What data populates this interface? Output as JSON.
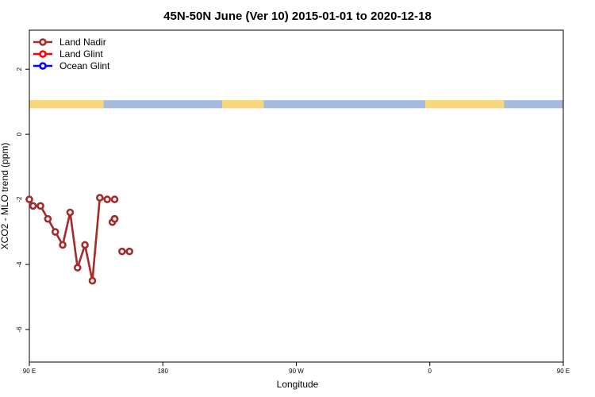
{
  "chart_data": {
    "type": "line",
    "title": "45N-50N June (Ver 10)   2015-01-01 to 2020-12-18",
    "xlabel": "Longitude",
    "ylabel": "XCO2 - MLO trend (ppm)",
    "xlim": [
      90,
      450
    ],
    "ylim": [
      -7,
      3.2
    ],
    "x_ticks": [
      {
        "value": 90,
        "label": "90 E"
      },
      {
        "value": 180,
        "label": "180"
      },
      {
        "value": 270,
        "label": "90 W"
      },
      {
        "value": 360,
        "label": "0"
      },
      {
        "value": 450,
        "label": "90 E"
      },
      {
        "value": 540,
        "label": "180"
      }
    ],
    "y_ticks": [
      -6,
      -4,
      -2,
      0,
      2
    ],
    "legend_position": "top-left",
    "band": {
      "y_range": [
        0.8,
        1.05
      ],
      "land_color": "#F9D77A",
      "ocean_color": "#A6BCDE",
      "segments": [
        {
          "type": "land",
          "from": 90,
          "to": 140
        },
        {
          "type": "ocean",
          "from": 140,
          "to": 220
        },
        {
          "type": "land",
          "from": 220,
          "to": 248
        },
        {
          "type": "ocean",
          "from": 248,
          "to": 357
        },
        {
          "type": "land",
          "from": 357,
          "to": 410
        },
        {
          "type": "ocean",
          "from": 410,
          "to": 540
        }
      ]
    },
    "series": [
      {
        "name": "Land Nadir",
        "color": "#A52A2A",
        "segments": [
          [
            [
              90,
              -2.0
            ],
            [
              92.5,
              -2.2
            ],
            [
              97.5,
              -2.2
            ],
            [
              102.5,
              -2.6
            ],
            [
              107.5,
              -3.0
            ],
            [
              112.5,
              -3.4
            ],
            [
              117.5,
              -2.4
            ],
            [
              122.5,
              -4.1
            ],
            [
              127.5,
              -3.4
            ],
            [
              132.5,
              -4.5
            ],
            [
              137.5,
              -1.95
            ],
            [
              142.5,
              -2.0
            ]
          ],
          [
            [
              147.5,
              -2.6
            ]
          ],
          [
            [
              146,
              -2.7
            ]
          ],
          [
            [
              147.5,
              -2.6
            ]
          ],
          [
            [
              147.5,
              -2.0
            ]
          ],
          [
            [
              147.5,
              -2.6
            ]
          ],
          [
            [
              152.5,
              -3.6
            ]
          ],
          [
            [
              157.5,
              -3.6
            ]
          ]
        ]
      },
      {
        "name": "Land Glint",
        "color": "#FF0000",
        "segments": []
      },
      {
        "name": "Ocean Glint",
        "color": "#0000FF",
        "segments": []
      }
    ]
  }
}
